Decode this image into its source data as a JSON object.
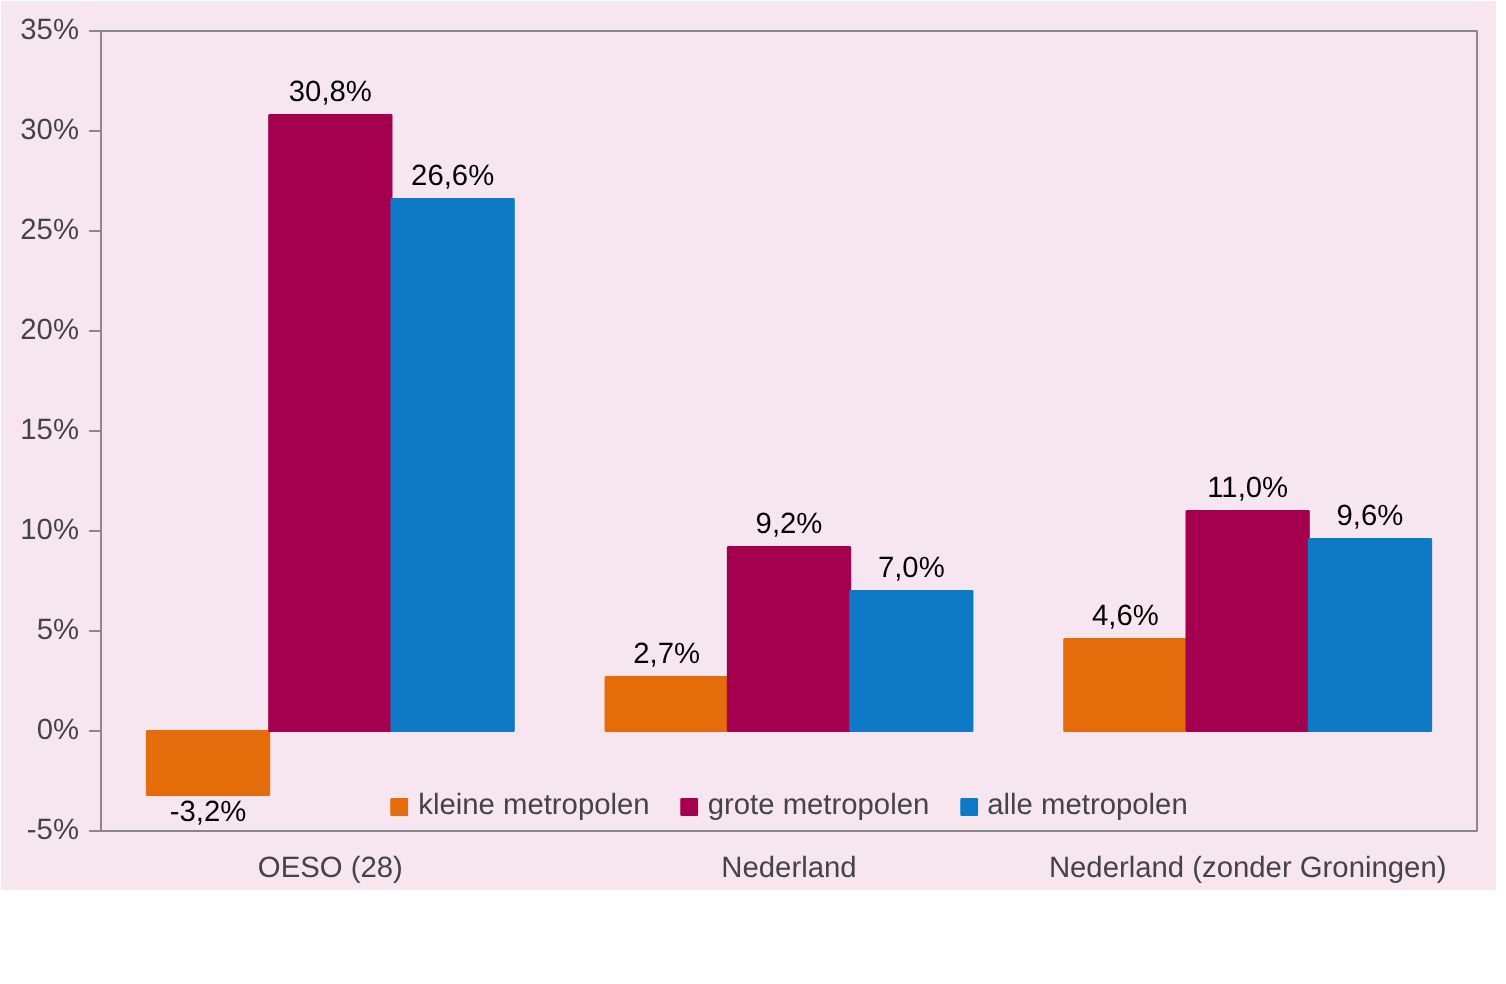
{
  "chart_data": {
    "type": "bar",
    "categories": [
      "OESO (28)",
      "Nederland",
      "Nederland (zonder Groningen)"
    ],
    "series": [
      {
        "name": "kleine metropolen",
        "color": "#e46c0a",
        "values": [
          -3.2,
          2.7,
          4.6
        ],
        "value_labels": [
          "-3,2%",
          "2,7%",
          "4,6%"
        ]
      },
      {
        "name": "grote metropolen",
        "color": "#a5004f",
        "values": [
          30.8,
          9.2,
          11.0
        ],
        "value_labels": [
          "30,8%",
          "9,2%",
          "11,0%"
        ]
      },
      {
        "name": "alle metropolen",
        "color": "#0e7ac6",
        "values": [
          26.6,
          7.0,
          9.6
        ],
        "value_labels": [
          "26,6%",
          "7,0%",
          "9,6%"
        ]
      }
    ],
    "ylim": [
      -5,
      35
    ],
    "yticks": [
      {
        "value": -5,
        "label": "-5%"
      },
      {
        "value": 0,
        "label": "0%"
      },
      {
        "value": 5,
        "label": "5%"
      },
      {
        "value": 10,
        "label": "10%"
      },
      {
        "value": 15,
        "label": "15%"
      },
      {
        "value": 20,
        "label": "20%"
      },
      {
        "value": 25,
        "label": "25%"
      },
      {
        "value": 30,
        "label": "30%"
      },
      {
        "value": 35,
        "label": "35%"
      }
    ],
    "grid": false,
    "legend": "bottom"
  }
}
